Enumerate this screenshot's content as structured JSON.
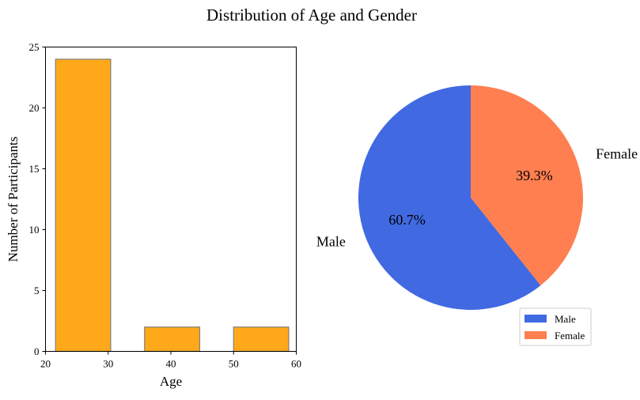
{
  "suptitle": "Distribution of Age and Gender",
  "chart_data": [
    {
      "type": "bar",
      "subtype": "histogram",
      "xlabel": "Age",
      "ylabel": "Number of Participants",
      "xlim": [
        20,
        60
      ],
      "ylim": [
        0,
        25
      ],
      "xticks": [
        20,
        30,
        40,
        50,
        60
      ],
      "yticks": [
        0,
        5,
        10,
        15,
        20,
        25
      ],
      "bins": [
        {
          "start": 21.6,
          "end": 30.4,
          "value": 24
        },
        {
          "start": 35.8,
          "end": 44.6,
          "value": 2
        },
        {
          "start": 50.0,
          "end": 58.8,
          "value": 2
        }
      ],
      "bar_color": "#FFA91A",
      "edge_color": "#808080",
      "grid": false
    },
    {
      "type": "pie",
      "labels": [
        "Male",
        "Female"
      ],
      "values": [
        60.7,
        39.3
      ],
      "pct_labels": [
        "60.7%",
        "39.3%"
      ],
      "colors": [
        "#4169E1",
        "#FF7F50"
      ],
      "start_angle_deg": 90,
      "direction": "clockwise-female-first",
      "legend": {
        "position": "lower-right",
        "entries": [
          "Male",
          "Female"
        ]
      }
    }
  ]
}
